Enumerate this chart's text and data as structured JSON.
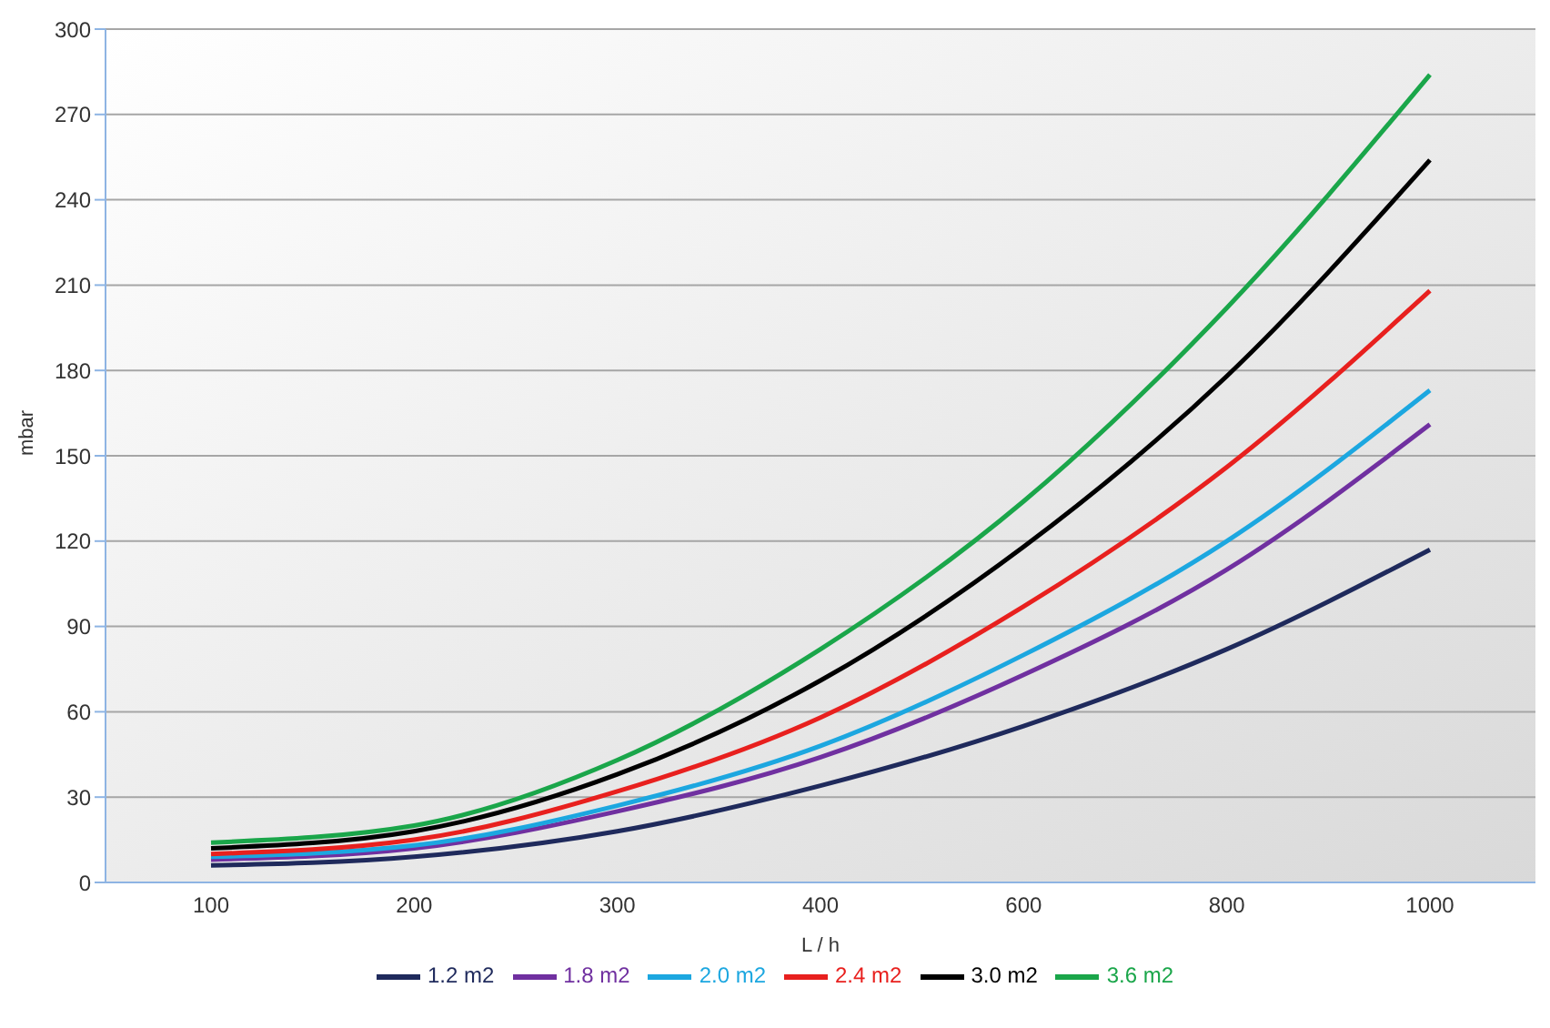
{
  "chart_data": {
    "type": "line",
    "xlabel": "L / h",
    "ylabel": "mbar",
    "categories": [
      "100",
      "200",
      "300",
      "400",
      "600",
      "800",
      "1000"
    ],
    "series": [
      {
        "name": "1.2 m2",
        "color": "#1f2a5c",
        "values": [
          6,
          9,
          18,
          34,
          55,
          82,
          117
        ]
      },
      {
        "name": "1.8 m2",
        "color": "#7030a0",
        "values": [
          8,
          12,
          25,
          44,
          73,
          110,
          161
        ]
      },
      {
        "name": "2.0 m2",
        "color": "#1ca7e0",
        "values": [
          9,
          13,
          27,
          48,
          80,
          120,
          173
        ]
      },
      {
        "name": "2.4 m2",
        "color": "#e8201e",
        "values": [
          10,
          15,
          32,
          58,
          97,
          146,
          208
        ]
      },
      {
        "name": "3.0 m2",
        "color": "#000000",
        "values": [
          12,
          18,
          38,
          71,
          118,
          178,
          254
        ]
      },
      {
        "name": "3.6 m2",
        "color": "#1aa64a",
        "values": [
          14,
          20,
          43,
          82,
          134,
          202,
          284
        ]
      }
    ],
    "ylim": [
      0,
      300
    ],
    "yticks": [
      0,
      30,
      60,
      90,
      120,
      150,
      180,
      210,
      240,
      270,
      300
    ],
    "grid": "y",
    "legend": "bottom",
    "marker": "none",
    "line_style": "solid"
  }
}
